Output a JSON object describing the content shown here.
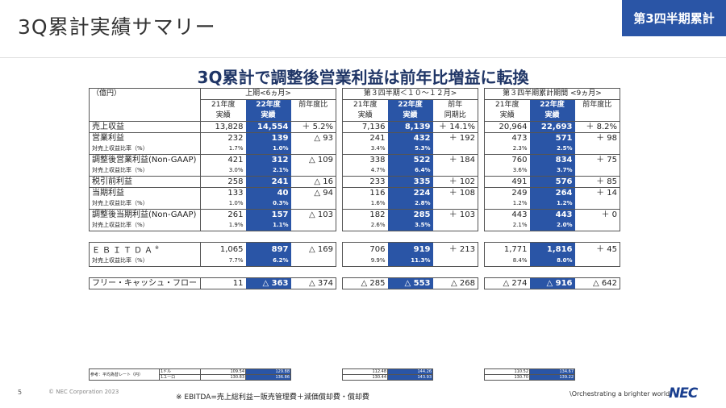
{
  "page": {
    "title": "3Q累計実績サマリー",
    "badge": "第3四半期累計",
    "subtitle": "3Q累計で調整後営業利益は前年比増益に転換",
    "unit": "（億円）",
    "page_number": "5",
    "copyright": "© NEC Corporation 2023",
    "footnote": "※ EBITDA=売上総利益ー販売管理費＋減価償却費・償却費",
    "tagline": "\\Orchestrating a brighter world",
    "logo": "NEC"
  },
  "table": {
    "periods": [
      "上期<6ヵ月>",
      "第３四半期＜１０～１２月>",
      "第３四半期累計期間 <9ヵ月>"
    ],
    "col_headers": [
      [
        "21年度",
        "実績"
      ],
      [
        "22年度",
        "実績"
      ],
      [
        "前年度比",
        ""
      ],
      [
        "21年度",
        "実績"
      ],
      [
        "22年度",
        "実績"
      ],
      [
        "前年",
        "同期比"
      ],
      [
        "21年度",
        "実績"
      ],
      [
        "22年度",
        "実績"
      ],
      [
        "前年度比",
        ""
      ]
    ],
    "rows": [
      {
        "label": "売上収益",
        "values": [
          "13,828",
          "14,554",
          "＋ 5.2%",
          "7,136",
          "8,139",
          "＋ 14.1%",
          "20,964",
          "22,693",
          "＋ 8.2%"
        ]
      },
      {
        "label": "営業利益",
        "values": [
          "232",
          "139",
          "△ 93",
          "241",
          "432",
          "＋ 192",
          "473",
          "571",
          "＋ 98"
        ],
        "sub": {
          "label": "対売上収益比率（%）",
          "values": [
            "1.7%",
            "1.0%",
            "",
            "3.4%",
            "5.3%",
            "",
            "2.3%",
            "2.5%",
            ""
          ]
        }
      },
      {
        "label": "調整後営業利益(Non-GAAP)",
        "values": [
          "421",
          "312",
          "△ 109",
          "338",
          "522",
          "＋ 184",
          "760",
          "834",
          "＋ 75"
        ],
        "sub": {
          "label": "対売上収益比率（%）",
          "values": [
            "3.0%",
            "2.1%",
            "",
            "4.7%",
            "6.4%",
            "",
            "3.6%",
            "3.7%",
            ""
          ]
        }
      },
      {
        "label": "税引前利益",
        "values": [
          "258",
          "241",
          "△ 16",
          "233",
          "335",
          "＋ 102",
          "491",
          "576",
          "＋ 85"
        ]
      },
      {
        "label": "当期利益",
        "values": [
          "133",
          "40",
          "△ 94",
          "116",
          "224",
          "＋ 108",
          "249",
          "264",
          "＋ 14"
        ],
        "sub": {
          "label": "対売上収益比率（%）",
          "values": [
            "1.0%",
            "0.3%",
            "",
            "1.6%",
            "2.8%",
            "",
            "1.2%",
            "1.2%",
            ""
          ]
        }
      },
      {
        "label": "調整後当期利益(Non-GAAP)",
        "values": [
          "261",
          "157",
          "△ 103",
          "182",
          "285",
          "＋ 103",
          "443",
          "443",
          "＋ 0"
        ],
        "sub": {
          "label": "対売上収益比率（%）",
          "values": [
            "1.9%",
            "1.1%",
            "",
            "2.6%",
            "3.5%",
            "",
            "2.1%",
            "2.0%",
            ""
          ]
        }
      }
    ],
    "ebitda": {
      "label": "ＥＢＩＴＤＡ",
      "mark": "※",
      "values": [
        "1,065",
        "897",
        "△ 169",
        "706",
        "919",
        "＋ 213",
        "1,771",
        "1,816",
        "＋ 45"
      ],
      "sub": {
        "label": "対売上収益比率（%）",
        "values": [
          "7.7%",
          "6.2%",
          "",
          "9.9%",
          "11.3%",
          "",
          "8.4%",
          "8.0%",
          ""
        ]
      }
    },
    "fcf": {
      "label": "フリー・キャッシュ・フロー",
      "values": [
        "11",
        "△ 363",
        "△ 374",
        "△ 285",
        "△ 553",
        "△ 268",
        "△ 274",
        "△ 916",
        "△ 642"
      ]
    },
    "fx": {
      "label": "参考：平均為替レート（円）",
      "rows": [
        {
          "label": "1ドル",
          "values": [
            "109.54",
            "129.88",
            "112.48",
            "144.26",
            "110.52",
            "134.67"
          ]
        },
        {
          "label": "1ユーロ",
          "values": [
            "130.83",
            "136.86",
            "130.44",
            "143.93",
            "130.70",
            "139.22"
          ]
        }
      ]
    }
  }
}
